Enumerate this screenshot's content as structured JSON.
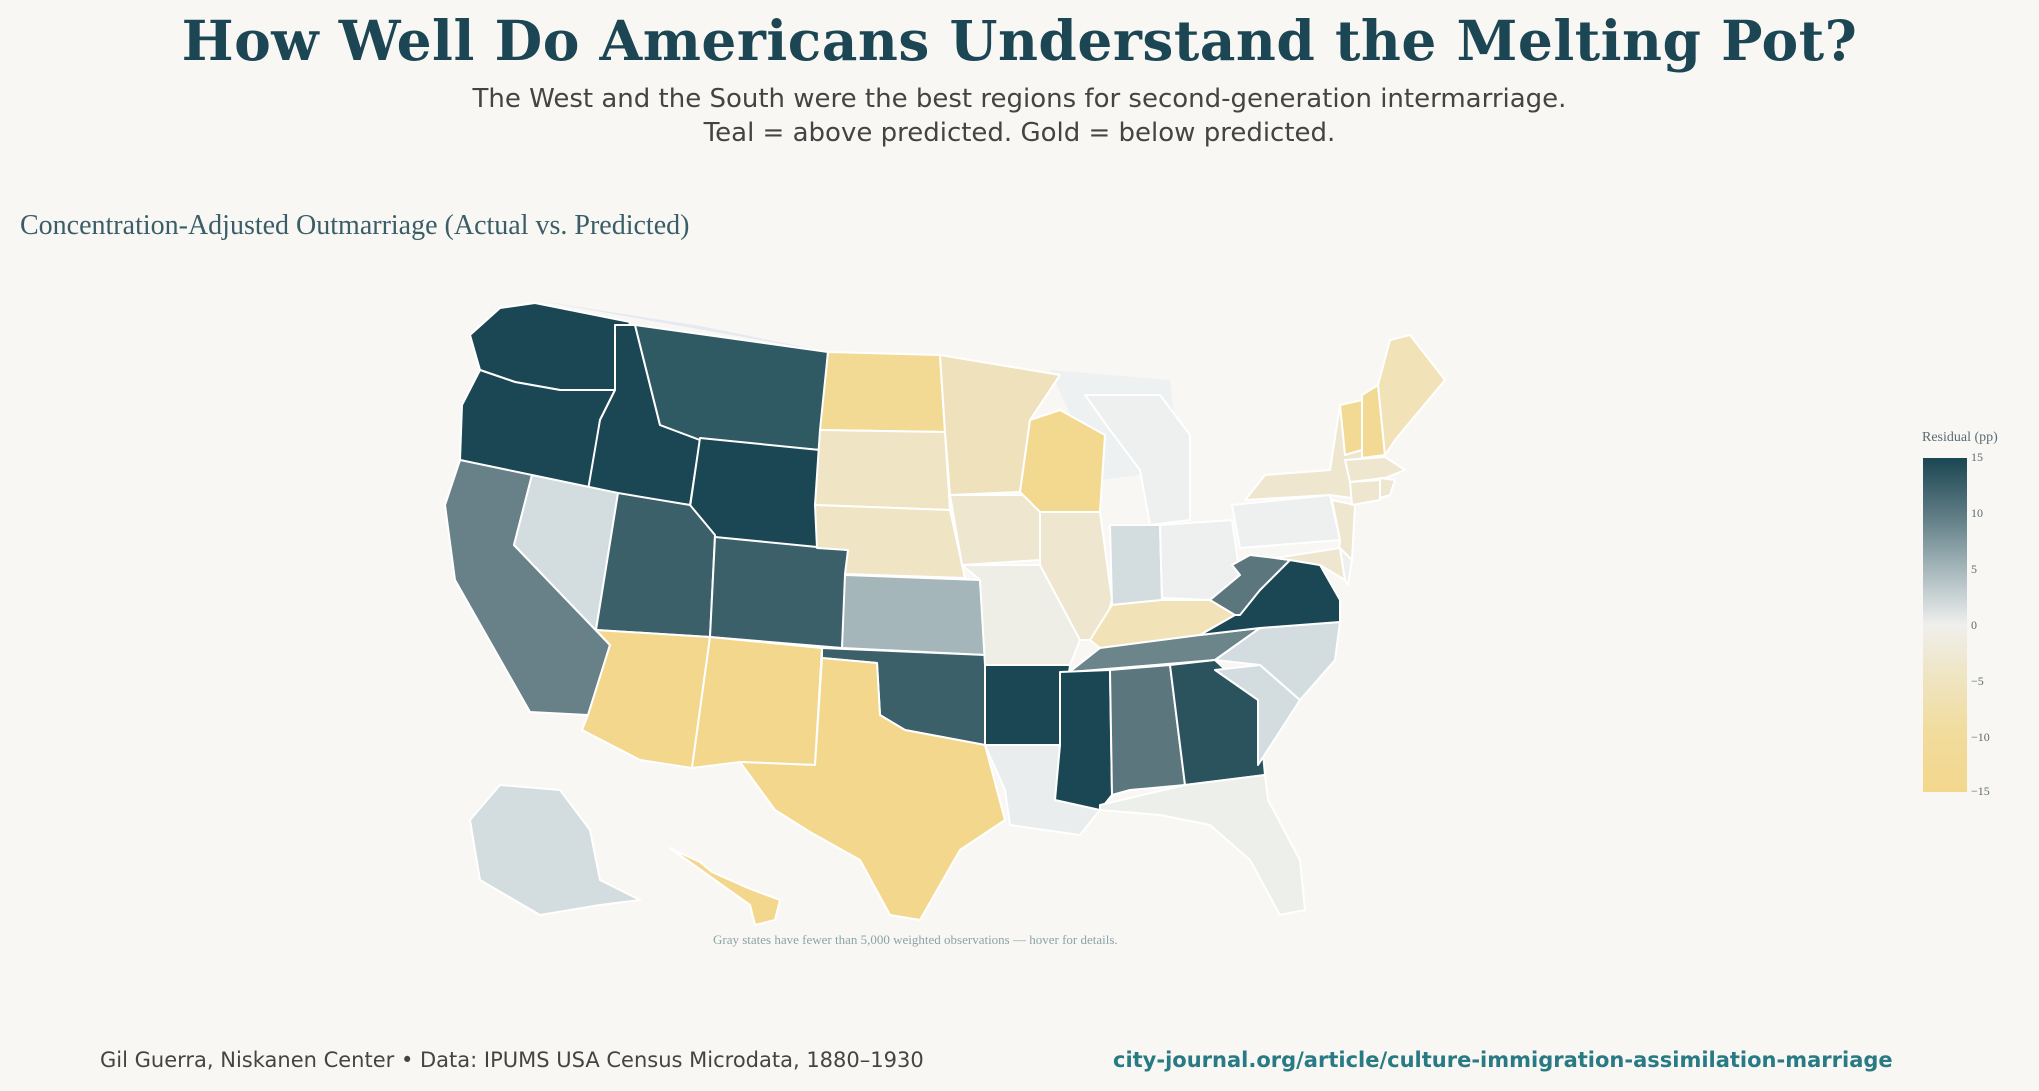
{
  "header": {
    "title": "How Well Do Americans Understand the Melting Pot?",
    "subtitle_line1": "The West and the South were the best regions for second-generation intermarriage.",
    "subtitle_line2": "Teal = above predicted. Gold = below predicted."
  },
  "map": {
    "title": "Concentration-Adjusted Outmarriage (Actual vs. Predicted)",
    "note": "Gray states have fewer than 5,000 weighted observations — hover for details.",
    "colorbar": {
      "title": "Residual (pp)",
      "ticks": [
        "15",
        "10",
        "5",
        "0",
        "−5",
        "−10",
        "−15"
      ]
    },
    "colors": {
      "strong_teal": "#1b4653",
      "teal": "#2f5a64",
      "mid_teal": "#5f7b82",
      "gray_teal": "#a4b6b9",
      "light_blue": "#d3dcde",
      "neutral": "#edf0ef",
      "beige": "#efe8d4",
      "light_gold": "#efe1bc",
      "gold": "#f3d78c"
    },
    "states": [
      {
        "id": "WA",
        "color": "#1b4653"
      },
      {
        "id": "OR",
        "color": "#1b4653"
      },
      {
        "id": "ID",
        "color": "#1b4653"
      },
      {
        "id": "MT",
        "color": "#2f5a64"
      },
      {
        "id": "WY",
        "color": "#1b4653"
      },
      {
        "id": "CA",
        "color": "#688189"
      },
      {
        "id": "NV",
        "color": "#d3dcde"
      },
      {
        "id": "UT",
        "color": "#3b6069"
      },
      {
        "id": "CO",
        "color": "#3b6069"
      },
      {
        "id": "AZ",
        "color": "#f3d78c"
      },
      {
        "id": "NM",
        "color": "#f3d78c"
      },
      {
        "id": "ND",
        "color": "#f3da94"
      },
      {
        "id": "SD",
        "color": "#efe4c3"
      },
      {
        "id": "NE",
        "color": "#efe4c3"
      },
      {
        "id": "KS",
        "color": "#a4b6b9"
      },
      {
        "id": "OK",
        "color": "#3b6069"
      },
      {
        "id": "TX",
        "color": "#f3d78c"
      },
      {
        "id": "MN",
        "color": "#efe1bc"
      },
      {
        "id": "IA",
        "color": "#efe6cf"
      },
      {
        "id": "MO",
        "color": "#eeede6"
      },
      {
        "id": "AR",
        "color": "#1b4653"
      },
      {
        "id": "LA",
        "color": "#e9edee"
      },
      {
        "id": "WI",
        "color": "#f3d98f"
      },
      {
        "id": "IL",
        "color": "#efe6cf"
      },
      {
        "id": "MI",
        "color": "#edf0ef"
      },
      {
        "id": "IN",
        "color": "#d3dcde"
      },
      {
        "id": "OH",
        "color": "#edf0ef"
      },
      {
        "id": "KY",
        "color": "#f1e2b8"
      },
      {
        "id": "TN",
        "color": "#6c858b"
      },
      {
        "id": "MS",
        "color": "#1b4653"
      },
      {
        "id": "AL",
        "color": "#5b767d"
      },
      {
        "id": "GA",
        "color": "#2a535d"
      },
      {
        "id": "FL",
        "color": "#edefeb"
      },
      {
        "id": "SC",
        "color": "#d3dcde"
      },
      {
        "id": "NC",
        "color": "#d3dcde"
      },
      {
        "id": "VA",
        "color": "#1b4653"
      },
      {
        "id": "WV",
        "color": "#5b767d"
      },
      {
        "id": "PA",
        "color": "#edf0ef"
      },
      {
        "id": "NY",
        "color": "#efe6cf"
      },
      {
        "id": "NJ",
        "color": "#efe6cf"
      },
      {
        "id": "MD",
        "color": "#efe6cf"
      },
      {
        "id": "DE",
        "color": "#edf0ef"
      },
      {
        "id": "VT",
        "color": "#f3da94"
      },
      {
        "id": "NH",
        "color": "#f3da94"
      },
      {
        "id": "ME",
        "color": "#f1e2b8"
      },
      {
        "id": "MA",
        "color": "#efe6cf"
      },
      {
        "id": "CT",
        "color": "#efe6cf"
      },
      {
        "id": "RI",
        "color": "#efe6cf"
      },
      {
        "id": "AK",
        "color": "#d3dcde"
      },
      {
        "id": "HI",
        "color": "#f3d78c"
      }
    ]
  },
  "footer": {
    "credit": "Gil Guerra, Niskanen Center  •  Data: IPUMS USA Census Microdata, 1880–1930",
    "link": "city-journal.org/article/culture-immigration-assimilation-marriage"
  }
}
